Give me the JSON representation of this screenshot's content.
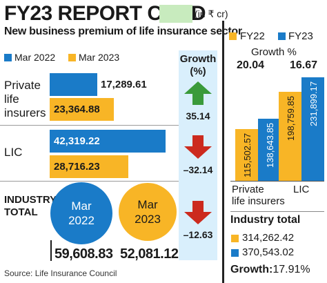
{
  "header": {
    "title": "FY23 REPORT CARD",
    "unit": "(in ₹ cr)",
    "subtitle": "New business premium of life insurance sector"
  },
  "colors": {
    "mar2022": "#1a7bc8",
    "mar2023": "#f8b526",
    "growth_bg": "#d9effc",
    "up": "#3a9a3a",
    "down": "#cc2a1e"
  },
  "legend": {
    "mar2022": "Mar 2022",
    "mar2023": "Mar 2023"
  },
  "growth_header": {
    "line1": "Growth",
    "line2": "(%)"
  },
  "rows": {
    "private": {
      "label_line1": "Private",
      "label_line2": "life",
      "label_line3": "insurers",
      "v2022": "17,289.61",
      "v2023": "23,364.88",
      "growth": "35.14"
    },
    "lic": {
      "label": "LIC",
      "v2022": "42,319.22",
      "v2023": "28,716.23",
      "growth": "–32.14"
    },
    "industry": {
      "label_line1": "INDUSTRY",
      "label_line2": "TOTAL",
      "c2022_line1": "Mar",
      "c2022_line2": "2022",
      "c2023_line1": "Mar",
      "c2023_line2": "2023",
      "v2022": "59,608.83",
      "v2023": "52,081.12",
      "growth": "–12.63"
    }
  },
  "right_panel": {
    "legend_fy22": "FY22",
    "legend_fy23": "FY23",
    "growth_title": "Growth %",
    "private_growth": "20.04",
    "lic_growth": "16.67",
    "cat_private_line1": "Private",
    "cat_private_line2": "life insurers",
    "cat_lic": "LIC",
    "industry_title": "Industry total",
    "ind_fy22": "314,262.42",
    "ind_fy23": "370,543.02",
    "growth_label": "Growth:",
    "growth_value": "17.91%"
  },
  "source": "Source: Life Insurance Council",
  "chart_data": [
    {
      "type": "bar",
      "title": "New business premium of life insurance sector",
      "categories": [
        "Private life insurers",
        "LIC"
      ],
      "series": [
        {
          "name": "Mar 2022",
          "values": [
            17289.61,
            42319.22
          ]
        },
        {
          "name": "Mar 2023",
          "values": [
            23364.88,
            28716.23
          ]
        }
      ],
      "growth_pct": [
        35.14,
        -32.14
      ],
      "industry_total": {
        "Mar 2022": 59608.83,
        "Mar 2023": 52081.12,
        "growth_pct": -12.63
      }
    },
    {
      "type": "bar",
      "categories": [
        "Private life insurers",
        "LIC"
      ],
      "series": [
        {
          "name": "FY22",
          "values": [
            115502.57,
            198759.85
          ]
        },
        {
          "name": "FY23",
          "values": [
            138643.85,
            231899.17
          ]
        }
      ],
      "growth_pct": [
        20.04,
        16.67
      ],
      "industry_total": {
        "FY22": 314262.42,
        "FY23": 370543.02,
        "growth_pct": 17.91
      }
    }
  ]
}
